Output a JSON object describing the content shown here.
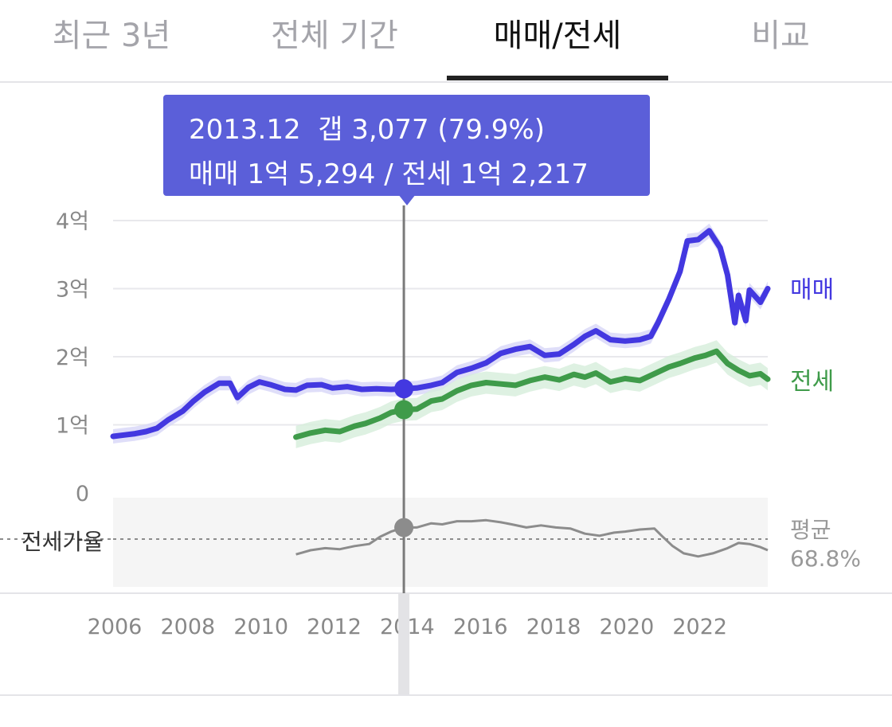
{
  "tabs": [
    {
      "label": "최근 3년",
      "active": false
    },
    {
      "label": "전체 기간",
      "active": false
    },
    {
      "label": "매매/전세",
      "active": true
    },
    {
      "label": "비교",
      "active": false
    }
  ],
  "tooltip": {
    "line1": "2013.12  갭 3,077 (79.9%)",
    "line2": "매매 1억 5,294 / 전세 1억 2,217"
  },
  "colors": {
    "sale": "#4338e0",
    "sale_band": "#d7d6f8",
    "jeonse": "#3f9b4a",
    "jeonse_band": "#d6eedb",
    "ratio": "#8c8c8c",
    "tooltip_bg": "#5b5fd9"
  },
  "chart_data": {
    "type": "line",
    "xlabel": "",
    "ylabel": "",
    "x_ticks": [
      "2006",
      "2008",
      "2010",
      "2012",
      "2014",
      "2016",
      "2018",
      "2020",
      "2022"
    ],
    "y_ticks": [
      "0",
      "1억",
      "2억",
      "3억",
      "4억"
    ],
    "ylim": [
      0,
      40000
    ],
    "unit": "만원",
    "grid": true,
    "selected": {
      "x": 2013.95,
      "sale": 15294,
      "jeonse": 12217,
      "ratio_pct": 79.9
    },
    "series": [
      {
        "name": "매매",
        "points": [
          [
            2006.0,
            8300
          ],
          [
            2006.3,
            8500
          ],
          [
            2006.6,
            8700
          ],
          [
            2006.9,
            9000
          ],
          [
            2007.2,
            9500
          ],
          [
            2007.5,
            10700
          ],
          [
            2007.9,
            12000
          ],
          [
            2008.2,
            13500
          ],
          [
            2008.5,
            14800
          ],
          [
            2008.9,
            16100
          ],
          [
            2009.2,
            16100
          ],
          [
            2009.4,
            14000
          ],
          [
            2009.7,
            15500
          ],
          [
            2010.0,
            16300
          ],
          [
            2010.3,
            15900
          ],
          [
            2010.7,
            15200
          ],
          [
            2011.0,
            15100
          ],
          [
            2011.3,
            15800
          ],
          [
            2011.7,
            15900
          ],
          [
            2012.0,
            15400
          ],
          [
            2012.4,
            15600
          ],
          [
            2012.8,
            15200
          ],
          [
            2013.2,
            15300
          ],
          [
            2013.6,
            15200
          ],
          [
            2013.95,
            15294
          ],
          [
            2014.3,
            15400
          ],
          [
            2014.7,
            15800
          ],
          [
            2015.0,
            16200
          ],
          [
            2015.4,
            17700
          ],
          [
            2015.8,
            18300
          ],
          [
            2016.2,
            19100
          ],
          [
            2016.6,
            20500
          ],
          [
            2017.0,
            21100
          ],
          [
            2017.4,
            21500
          ],
          [
            2017.8,
            20200
          ],
          [
            2018.2,
            20400
          ],
          [
            2018.6,
            21800
          ],
          [
            2018.9,
            23000
          ],
          [
            2019.2,
            23800
          ],
          [
            2019.6,
            22500
          ],
          [
            2020.0,
            22300
          ],
          [
            2020.4,
            22500
          ],
          [
            2020.7,
            23000
          ],
          [
            2020.9,
            25000
          ],
          [
            2021.2,
            28500
          ],
          [
            2021.5,
            32500
          ],
          [
            2021.7,
            37000
          ],
          [
            2022.0,
            37200
          ],
          [
            2022.3,
            38500
          ],
          [
            2022.6,
            36000
          ],
          [
            2022.8,
            32000
          ],
          [
            2022.9,
            28500
          ],
          [
            2023.0,
            25000
          ],
          [
            2023.1,
            29000
          ],
          [
            2023.3,
            25300
          ],
          [
            2023.4,
            29800
          ],
          [
            2023.7,
            28000
          ],
          [
            2023.9,
            30000
          ]
        ]
      },
      {
        "name": "전세",
        "points": [
          [
            2011.0,
            8200
          ],
          [
            2011.4,
            8800
          ],
          [
            2011.8,
            9200
          ],
          [
            2012.2,
            9000
          ],
          [
            2012.6,
            9800
          ],
          [
            2012.9,
            10200
          ],
          [
            2013.3,
            11000
          ],
          [
            2013.6,
            11800
          ],
          [
            2013.95,
            12217
          ],
          [
            2014.3,
            12300
          ],
          [
            2014.7,
            13500
          ],
          [
            2015.0,
            13800
          ],
          [
            2015.4,
            15000
          ],
          [
            2015.8,
            15800
          ],
          [
            2016.2,
            16200
          ],
          [
            2016.6,
            16000
          ],
          [
            2017.0,
            15800
          ],
          [
            2017.4,
            16500
          ],
          [
            2017.8,
            17000
          ],
          [
            2018.2,
            16600
          ],
          [
            2018.6,
            17400
          ],
          [
            2018.9,
            17000
          ],
          [
            2019.2,
            17600
          ],
          [
            2019.6,
            16300
          ],
          [
            2020.0,
            16800
          ],
          [
            2020.4,
            16500
          ],
          [
            2020.8,
            17500
          ],
          [
            2021.2,
            18500
          ],
          [
            2021.5,
            19000
          ],
          [
            2021.9,
            19800
          ],
          [
            2022.2,
            20200
          ],
          [
            2022.5,
            20800
          ],
          [
            2022.8,
            19000
          ],
          [
            2023.1,
            18000
          ],
          [
            2023.4,
            17200
          ],
          [
            2023.7,
            17500
          ],
          [
            2023.9,
            16700
          ]
        ]
      },
      {
        "name": "전세가율",
        "average_label": "평균",
        "average_value": "68.8%",
        "average_pct": 68.8,
        "points": [
          [
            2011.0,
            54
          ],
          [
            2011.4,
            58
          ],
          [
            2011.8,
            60
          ],
          [
            2012.2,
            59
          ],
          [
            2012.6,
            62
          ],
          [
            2013.0,
            64
          ],
          [
            2013.3,
            71
          ],
          [
            2013.6,
            76
          ],
          [
            2013.95,
            79.9
          ],
          [
            2014.3,
            80
          ],
          [
            2014.7,
            84
          ],
          [
            2015.0,
            83
          ],
          [
            2015.4,
            86
          ],
          [
            2015.8,
            86
          ],
          [
            2016.2,
            87
          ],
          [
            2016.6,
            85
          ],
          [
            2016.9,
            83
          ],
          [
            2017.3,
            80
          ],
          [
            2017.7,
            82
          ],
          [
            2018.1,
            80
          ],
          [
            2018.5,
            79
          ],
          [
            2018.9,
            74
          ],
          [
            2019.3,
            72
          ],
          [
            2019.7,
            75
          ],
          [
            2020.0,
            76
          ],
          [
            2020.4,
            78
          ],
          [
            2020.8,
            79
          ],
          [
            2021.0,
            72
          ],
          [
            2021.3,
            62
          ],
          [
            2021.6,
            55
          ],
          [
            2022.0,
            52
          ],
          [
            2022.4,
            55
          ],
          [
            2022.8,
            60
          ],
          [
            2023.1,
            65
          ],
          [
            2023.4,
            64
          ],
          [
            2023.7,
            61
          ],
          [
            2023.9,
            58
          ]
        ]
      }
    ]
  }
}
